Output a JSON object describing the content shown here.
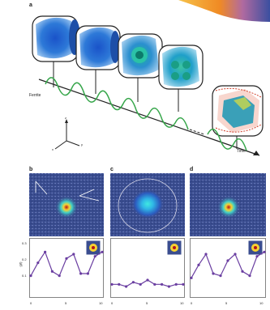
{
  "panel_a": {
    "letter": "a",
    "axis_labels": {
      "ferrite": "Ferrite",
      "time": "Time"
    },
    "coord_axes": {
      "z": "z",
      "y": "y",
      "x": "x"
    }
  },
  "panel_b": {
    "letter": "b"
  },
  "panel_c": {
    "letter": "c"
  },
  "panel_d": {
    "letter": "d"
  },
  "plots": {
    "ylabel": "g(t)",
    "yticks": [
      "0.3",
      "0.2",
      "0.1"
    ],
    "xticks": [
      "0",
      "5",
      "10"
    ]
  },
  "chart_data": [
    {
      "type": "line",
      "x": [
        0,
        1,
        2,
        3,
        4,
        5,
        6,
        7,
        8,
        9,
        10
      ],
      "y": [
        0.16,
        0.22,
        0.27,
        0.18,
        0.16,
        0.24,
        0.26,
        0.17,
        0.17,
        0.25,
        0.27
      ]
    },
    {
      "type": "line",
      "x": [
        0,
        1,
        2,
        3,
        4,
        5,
        6,
        7,
        8,
        9,
        10
      ],
      "y": [
        0.12,
        0.12,
        0.11,
        0.13,
        0.12,
        0.14,
        0.12,
        0.12,
        0.11,
        0.12,
        0.12
      ]
    },
    {
      "type": "line",
      "x": [
        0,
        1,
        2,
        3,
        4,
        5,
        6,
        7,
        8,
        9,
        10
      ],
      "y": [
        0.15,
        0.21,
        0.26,
        0.17,
        0.16,
        0.23,
        0.26,
        0.18,
        0.16,
        0.25,
        0.27
      ]
    }
  ],
  "colors": {
    "orange_corner": "#f08a24",
    "blue_corner": "#3b4fa0",
    "ferrite_green": "#36a64a",
    "hm_background": "#3a4d8f",
    "data_purple": "#6a3ea1",
    "data_red": "#e04040"
  }
}
